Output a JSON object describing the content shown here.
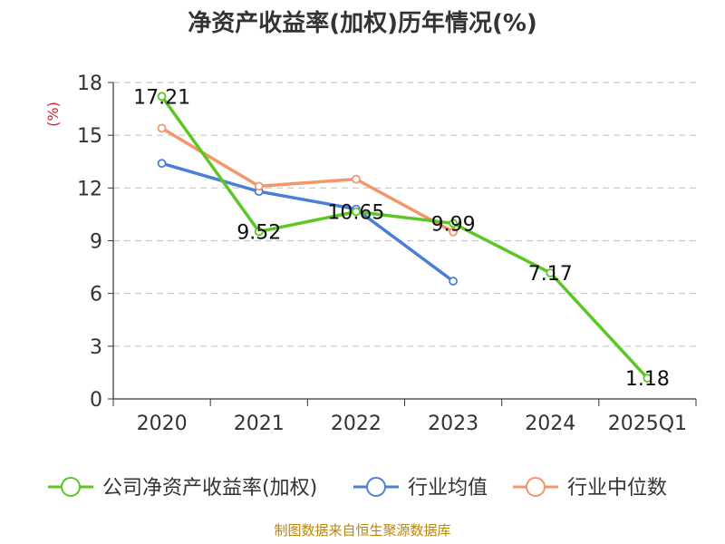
{
  "chart_data": {
    "type": "line",
    "title": "净资产收益率(加权)历年情况(%)",
    "ylabel": "(%)",
    "categories": [
      "2020",
      "2021",
      "2022",
      "2023",
      "2024",
      "2025Q1"
    ],
    "ylim": [
      0,
      18
    ],
    "yticks": [
      "0",
      "3",
      "6",
      "9",
      "12",
      "15",
      "18"
    ],
    "grid": true,
    "legend_position": "bottom",
    "series": [
      {
        "name": "公司净资产收益率(加权)",
        "color": "#5cc623",
        "values": [
          17.21,
          9.52,
          10.65,
          9.99,
          7.17,
          1.18
        ],
        "labels": [
          "17.21",
          "9.52",
          "10.65",
          "9.99",
          "7.17",
          "1.18"
        ]
      },
      {
        "name": "行业均值",
        "color": "#4a7fd6",
        "values": [
          13.4,
          11.8,
          10.8,
          6.7,
          null,
          null
        ]
      },
      {
        "name": "行业中位数",
        "color": "#f4956a",
        "values": [
          15.4,
          12.1,
          12.5,
          9.5,
          null,
          null
        ]
      }
    ]
  },
  "source": "制图数据来自恒生聚源数据库"
}
